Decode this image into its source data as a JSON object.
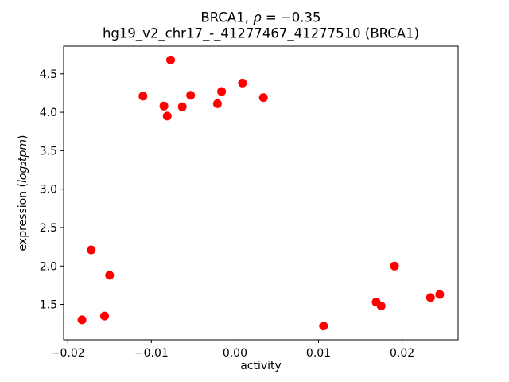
{
  "figure": {
    "background": "#ffffff",
    "text_color": "#000000"
  },
  "chart_data": {
    "type": "scatter",
    "title": "BRCA1, ρ = −0.35",
    "title_parts": {
      "prefix": "BRCA1, ",
      "rho": "ρ",
      "suffix": " = −0.35"
    },
    "subtitle": "hg19_v2_chr17_-_41277467_41277510 (BRCA1)",
    "xlabel": "activity",
    "ylabel": "expression (log₂tpm)",
    "ylabel_parts": {
      "prefix": "expression (",
      "math": "log₂tpm",
      "suffix": ")"
    },
    "legend": null,
    "grid": false,
    "marker": {
      "shape": "circle",
      "color": "#ff0000",
      "radius_px": 5.5
    },
    "axes": {
      "xlim": [
        -0.0205,
        0.0267
      ],
      "ylim": [
        1.04,
        4.86
      ]
    },
    "xticks": {
      "values": [
        -0.02,
        -0.01,
        0.0,
        0.01,
        0.02
      ],
      "labels": [
        "−0.02",
        "−0.01",
        "0.00",
        "0.01",
        "0.02"
      ]
    },
    "yticks": {
      "values": [
        1.5,
        2.0,
        2.5,
        3.0,
        3.5,
        4.0,
        4.5
      ],
      "labels": [
        "1.5",
        "2.0",
        "2.5",
        "3.0",
        "3.5",
        "4.0",
        "4.5"
      ]
    },
    "points": [
      {
        "x": -0.0183,
        "y": 1.3
      },
      {
        "x": -0.0172,
        "y": 2.21
      },
      {
        "x": -0.0156,
        "y": 1.35
      },
      {
        "x": -0.015,
        "y": 1.88
      },
      {
        "x": -0.011,
        "y": 4.21
      },
      {
        "x": -0.0085,
        "y": 4.08
      },
      {
        "x": -0.0081,
        "y": 3.95
      },
      {
        "x": -0.0077,
        "y": 4.68
      },
      {
        "x": -0.0063,
        "y": 4.07
      },
      {
        "x": -0.0053,
        "y": 4.22
      },
      {
        "x": -0.0021,
        "y": 4.11
      },
      {
        "x": -0.0016,
        "y": 4.27
      },
      {
        "x": 0.0009,
        "y": 4.38
      },
      {
        "x": 0.0034,
        "y": 4.19
      },
      {
        "x": 0.0106,
        "y": 1.22
      },
      {
        "x": 0.0169,
        "y": 1.53
      },
      {
        "x": 0.0175,
        "y": 1.48
      },
      {
        "x": 0.0191,
        "y": 2.0
      },
      {
        "x": 0.0234,
        "y": 1.59
      },
      {
        "x": 0.0245,
        "y": 1.63
      }
    ]
  }
}
